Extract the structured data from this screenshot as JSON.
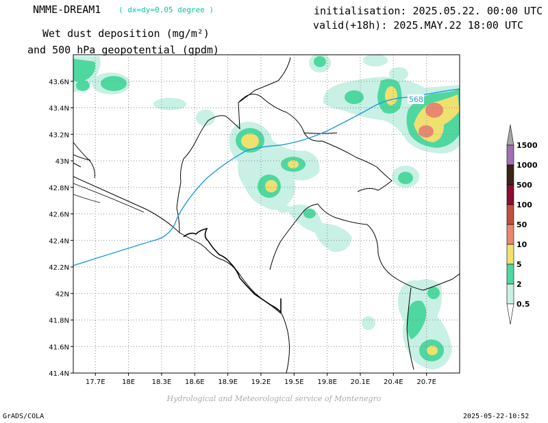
{
  "header": {
    "model": "NMME-DREAM1",
    "resolution": "( dx=dy=0.05 degree )",
    "variable_line1": "Wet dust deposition (mg/m²)",
    "variable_line2": "and 500 hPa geopotential (gpdm)",
    "init": "initialisation: 2025.05.22. 00:00 UTC",
    "valid": "valid(+18h): 2025.MAY.22 18:00 UTC"
  },
  "map": {
    "lon_range": [
      17.5,
      21.0
    ],
    "lat_range": [
      41.4,
      43.8
    ],
    "x_ticks": [
      "17.7E",
      "18E",
      "18.3E",
      "18.6E",
      "18.9E",
      "19.2E",
      "19.5E",
      "19.8E",
      "20.1E",
      "20.4E",
      "20.7E"
    ],
    "y_ticks": [
      "43.6N",
      "43.4N",
      "43.2N",
      "43N",
      "42.8N",
      "42.6N",
      "42.4N",
      "42.2N",
      "42N",
      "41.8N",
      "41.6N",
      "41.4N"
    ],
    "contour_label": "568",
    "contour_color": "#2299dd",
    "levels": [
      "1500",
      "1000",
      "500",
      "100",
      "50",
      "10",
      "5",
      "2",
      "0.5"
    ],
    "level_colors": [
      "#a070b0",
      "#3a2418",
      "#8a0e30",
      "#c05040",
      "#e88870",
      "#f0e070",
      "#4ed8a0",
      "#c8f0e4"
    ]
  },
  "footer": {
    "credit": "Hydrological and Meteorological service of Montenegro",
    "software": "GrADS/COLA",
    "timestamp": "2025-05-22-10:52"
  }
}
